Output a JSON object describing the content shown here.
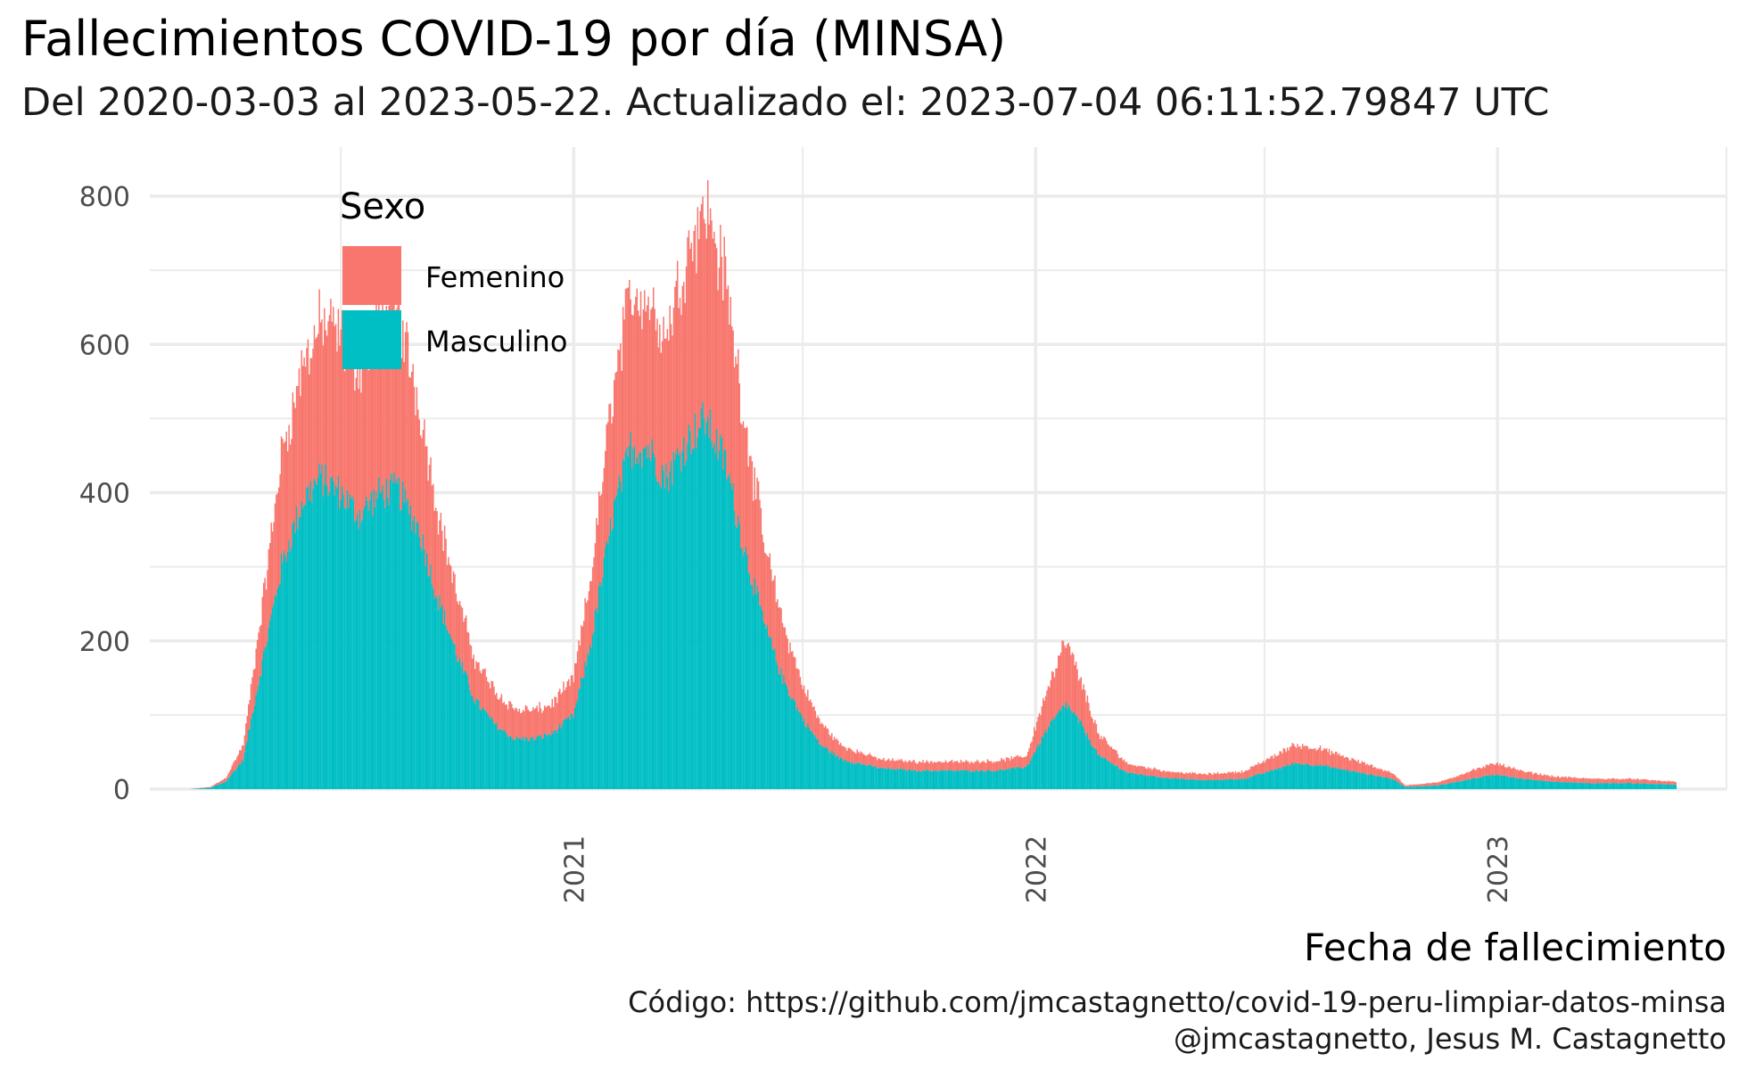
{
  "chart_data": {
    "type": "bar",
    "stacked": true,
    "title": "Fallecimientos COVID-19 por día (MINSA)",
    "subtitle": "Del 2020-03-03 al 2023-05-22. Actualizado el: 2023-07-04 06:11:52.79847 UTC",
    "xlabel": "Fecha de fallecimiento",
    "ylabel": "",
    "caption_lines": [
      "Código: https://github.com/jmcastagnetto/covid-19-peru-limpiar-datos-minsa",
      "@jmcastagnetto, Jesus M. Castagnetto"
    ],
    "x_range": [
      "2020-03-03",
      "2023-05-22"
    ],
    "ylim": [
      0,
      830
    ],
    "y_ticks": [
      0,
      200,
      400,
      600,
      800
    ],
    "y_tick_labels": [
      "0",
      "200",
      "400",
      "600",
      "800"
    ],
    "x_ticks": [
      "2021-01-01",
      "2022-01-01",
      "2023-01-01"
    ],
    "x_tick_labels": [
      "2021",
      "2022",
      "2023"
    ],
    "legend": {
      "title": "Sexo",
      "position": "top-left",
      "entries": [
        {
          "name": "Femenino",
          "color": "#F8766D"
        },
        {
          "name": "Masculino",
          "color": "#00BFC4"
        }
      ]
    },
    "series_order_bottom_to_top": [
      "Masculino",
      "Femenino"
    ],
    "series_profile_note": "Daily counts approximated by piecewise-linear control points (date, deaths) read off the chart.",
    "series": [
      {
        "name": "Masculino",
        "color": "#00BFC4",
        "points": [
          [
            "2020-03-03",
            0
          ],
          [
            "2020-03-20",
            2
          ],
          [
            "2020-04-01",
            10
          ],
          [
            "2020-04-15",
            40
          ],
          [
            "2020-05-01",
            180
          ],
          [
            "2020-05-15",
            300
          ],
          [
            "2020-06-01",
            390
          ],
          [
            "2020-06-15",
            420
          ],
          [
            "2020-07-01",
            400
          ],
          [
            "2020-07-15",
            370
          ],
          [
            "2020-08-01",
            400
          ],
          [
            "2020-08-15",
            405
          ],
          [
            "2020-09-01",
            350
          ],
          [
            "2020-09-15",
            260
          ],
          [
            "2020-10-01",
            180
          ],
          [
            "2020-10-15",
            120
          ],
          [
            "2020-11-01",
            85
          ],
          [
            "2020-11-15",
            68
          ],
          [
            "2020-12-01",
            68
          ],
          [
            "2020-12-15",
            75
          ],
          [
            "2021-01-01",
            100
          ],
          [
            "2021-01-15",
            200
          ],
          [
            "2021-02-01",
            370
          ],
          [
            "2021-02-15",
            460
          ],
          [
            "2021-03-01",
            460
          ],
          [
            "2021-03-15",
            420
          ],
          [
            "2021-04-01",
            470
          ],
          [
            "2021-04-15",
            500
          ],
          [
            "2021-05-01",
            440
          ],
          [
            "2021-05-15",
            330
          ],
          [
            "2021-06-01",
            220
          ],
          [
            "2021-06-15",
            150
          ],
          [
            "2021-07-01",
            95
          ],
          [
            "2021-07-15",
            60
          ],
          [
            "2021-08-01",
            40
          ],
          [
            "2021-09-01",
            28
          ],
          [
            "2021-10-01",
            25
          ],
          [
            "2021-11-01",
            25
          ],
          [
            "2021-12-01",
            25
          ],
          [
            "2021-12-25",
            30
          ],
          [
            "2022-01-10",
            80
          ],
          [
            "2022-01-25",
            115
          ],
          [
            "2022-02-05",
            90
          ],
          [
            "2022-02-20",
            45
          ],
          [
            "2022-03-15",
            22
          ],
          [
            "2022-04-15",
            15
          ],
          [
            "2022-05-15",
            12
          ],
          [
            "2022-06-15",
            14
          ],
          [
            "2022-07-01",
            22
          ],
          [
            "2022-07-25",
            35
          ],
          [
            "2022-08-15",
            32
          ],
          [
            "2022-09-15",
            22
          ],
          [
            "2022-10-10",
            14
          ],
          [
            "2022-10-20",
            3
          ],
          [
            "2022-11-15",
            5
          ],
          [
            "2022-12-15",
            15
          ],
          [
            "2023-01-01",
            20
          ],
          [
            "2023-01-20",
            14
          ],
          [
            "2023-02-15",
            10
          ],
          [
            "2023-03-15",
            8
          ],
          [
            "2023-04-15",
            8
          ],
          [
            "2023-05-22",
            6
          ]
        ]
      },
      {
        "name": "Femenino",
        "color": "#F8766D",
        "points": [
          [
            "2020-03-03",
            0
          ],
          [
            "2020-03-20",
            1
          ],
          [
            "2020-04-01",
            5
          ],
          [
            "2020-04-15",
            20
          ],
          [
            "2020-05-01",
            80
          ],
          [
            "2020-05-15",
            150
          ],
          [
            "2020-06-01",
            180
          ],
          [
            "2020-06-15",
            210
          ],
          [
            "2020-07-01",
            210
          ],
          [
            "2020-07-15",
            200
          ],
          [
            "2020-08-01",
            230
          ],
          [
            "2020-08-15",
            240
          ],
          [
            "2020-09-01",
            170
          ],
          [
            "2020-09-15",
            120
          ],
          [
            "2020-10-01",
            80
          ],
          [
            "2020-10-15",
            55
          ],
          [
            "2020-11-01",
            45
          ],
          [
            "2020-11-15",
            40
          ],
          [
            "2020-12-01",
            38
          ],
          [
            "2020-12-15",
            40
          ],
          [
            "2021-01-01",
            50
          ],
          [
            "2021-01-15",
            90
          ],
          [
            "2021-02-01",
            170
          ],
          [
            "2021-02-15",
            210
          ],
          [
            "2021-03-01",
            200
          ],
          [
            "2021-03-15",
            190
          ],
          [
            "2021-04-01",
            260
          ],
          [
            "2021-04-15",
            290
          ],
          [
            "2021-05-01",
            250
          ],
          [
            "2021-05-15",
            180
          ],
          [
            "2021-06-01",
            110
          ],
          [
            "2021-06-15",
            75
          ],
          [
            "2021-07-01",
            45
          ],
          [
            "2021-07-15",
            30
          ],
          [
            "2021-08-01",
            18
          ],
          [
            "2021-09-01",
            12
          ],
          [
            "2021-10-01",
            12
          ],
          [
            "2021-11-01",
            12
          ],
          [
            "2021-12-01",
            13
          ],
          [
            "2021-12-25",
            15
          ],
          [
            "2022-01-10",
            55
          ],
          [
            "2022-01-25",
            85
          ],
          [
            "2022-02-05",
            60
          ],
          [
            "2022-02-20",
            28
          ],
          [
            "2022-03-15",
            12
          ],
          [
            "2022-04-15",
            9
          ],
          [
            "2022-05-15",
            8
          ],
          [
            "2022-06-15",
            10
          ],
          [
            "2022-07-01",
            16
          ],
          [
            "2022-07-25",
            25
          ],
          [
            "2022-08-15",
            22
          ],
          [
            "2022-09-15",
            14
          ],
          [
            "2022-10-10",
            8
          ],
          [
            "2022-10-20",
            2
          ],
          [
            "2022-11-15",
            4
          ],
          [
            "2022-12-15",
            12
          ],
          [
            "2023-01-01",
            15
          ],
          [
            "2023-01-20",
            10
          ],
          [
            "2023-02-15",
            7
          ],
          [
            "2023-03-15",
            6
          ],
          [
            "2023-04-15",
            6
          ],
          [
            "2023-05-22",
            4
          ]
        ]
      }
    ]
  }
}
